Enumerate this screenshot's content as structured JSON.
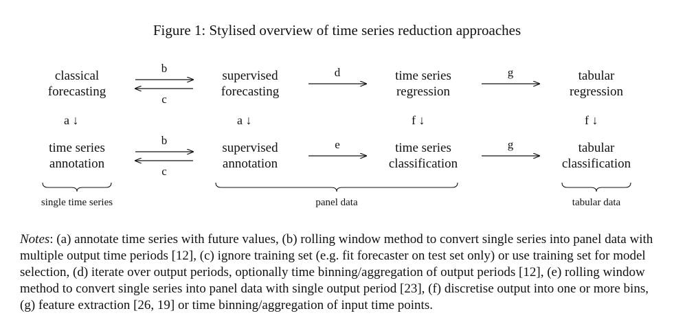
{
  "title": "Figure 1: Stylised overview of time series reduction approaches",
  "nodes": {
    "classical_forecasting": [
      "classical",
      "forecasting"
    ],
    "supervised_forecasting": [
      "supervised",
      "forecasting"
    ],
    "ts_regression": [
      "time series",
      "regression"
    ],
    "tabular_regression": [
      "tabular",
      "regression"
    ],
    "ts_annotation": [
      "time series",
      "annotation"
    ],
    "supervised_annotation": [
      "supervised",
      "annotation"
    ],
    "ts_classification": [
      "time series",
      "classification"
    ],
    "tabular_classification": [
      "tabular",
      "classification"
    ]
  },
  "edges": {
    "b": "b",
    "c": "c",
    "d": "d",
    "e": "e",
    "g": "g",
    "a_down": "a ↓",
    "f_down": "f ↓"
  },
  "braces": {
    "single": "single time series",
    "panel": "panel data",
    "tabular": "tabular data"
  },
  "notes": {
    "label": "Notes",
    "text": ": (a) annotate time series with future values, (b) rolling window method to convert single series into panel data with multiple output time periods [12], (c) ignore training set (e.g. fit forecaster on test set only) or use training set for model selection, (d) iterate over output periods, optionally time binning/aggregation of output periods [12], (e) rolling window method to convert single series into panel data with single output period [23], (f) discretise output into one or more bins, (g) feature extraction [26, 19] or time binning/aggregation of input time points."
  }
}
